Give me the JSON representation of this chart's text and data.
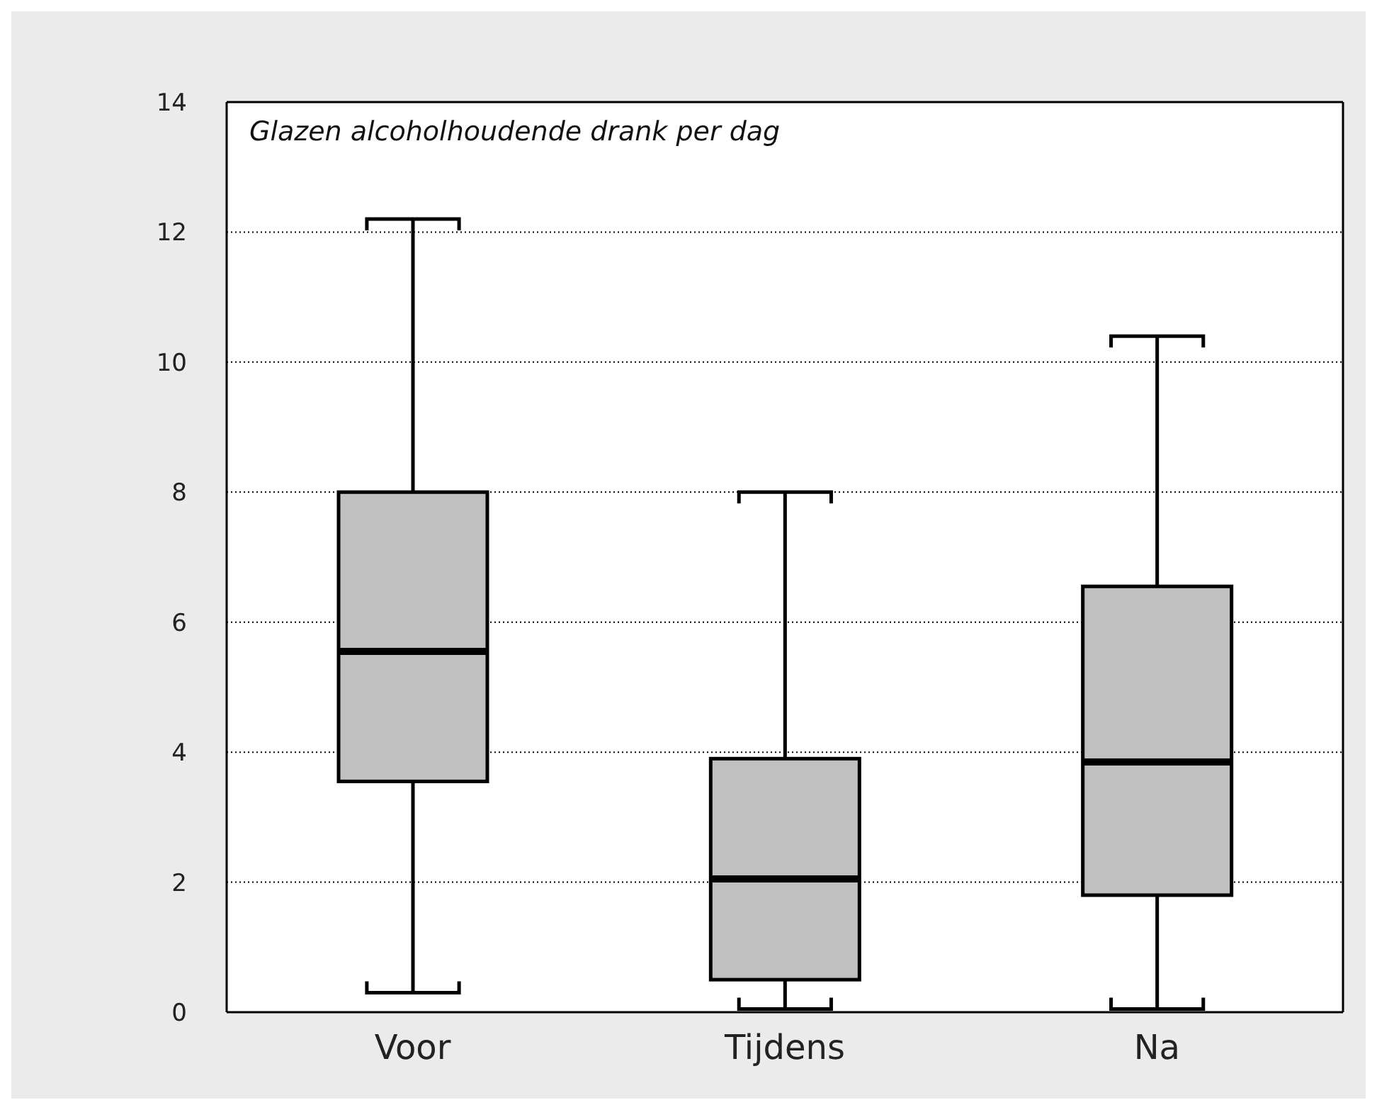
{
  "chart_data": {
    "type": "box",
    "title": "Glazen alcoholhoudende drank per dag",
    "categories": [
      "Voor",
      "Tijdens",
      "Na"
    ],
    "boxes": [
      {
        "low": 0.3,
        "q1": 3.55,
        "median": 5.55,
        "q3": 8.0,
        "high": 12.2
      },
      {
        "low": 0.05,
        "q1": 0.5,
        "median": 2.05,
        "q3": 3.9,
        "high": 8.0
      },
      {
        "low": 0.05,
        "q1": 1.8,
        "median": 3.85,
        "q3": 6.55,
        "high": 10.4
      }
    ],
    "color": "#c0c0c0",
    "ylim": [
      0,
      14
    ],
    "yticks": [
      0,
      2,
      4,
      6,
      8,
      10,
      12,
      14
    ],
    "grid": "y",
    "legend": false
  }
}
